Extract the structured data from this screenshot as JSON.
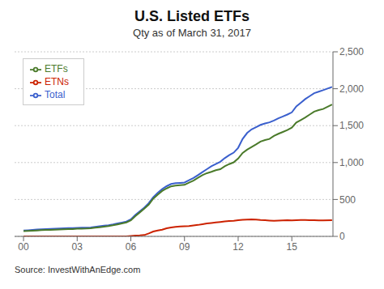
{
  "chart_data": {
    "type": "line",
    "title": "U.S. Listed ETFs",
    "subtitle": "Qty as of March 31, 2017",
    "source": "Source: InvestWithAnEdge.com",
    "x": [
      2000,
      2000.25,
      2000.5,
      2000.75,
      2001,
      2001.25,
      2001.5,
      2001.75,
      2002,
      2002.25,
      2002.5,
      2002.75,
      2003,
      2003.25,
      2003.5,
      2003.75,
      2004,
      2004.25,
      2004.5,
      2004.75,
      2005,
      2005.25,
      2005.5,
      2005.75,
      2006,
      2006.25,
      2006.5,
      2006.75,
      2007,
      2007.25,
      2007.5,
      2007.75,
      2008,
      2008.25,
      2008.5,
      2008.75,
      2009,
      2009.25,
      2009.5,
      2009.75,
      2010,
      2010.25,
      2010.5,
      2010.75,
      2011,
      2011.25,
      2011.5,
      2011.75,
      2012,
      2012.25,
      2012.5,
      2012.75,
      2013,
      2013.25,
      2013.5,
      2013.75,
      2014,
      2014.25,
      2014.5,
      2014.75,
      2015,
      2015.25,
      2015.5,
      2015.75,
      2016,
      2016.25,
      2016.5,
      2016.75,
      2017.25
    ],
    "series": [
      {
        "name": "Total",
        "color": "#3a5fcd",
        "values": [
          80,
          83,
          87,
          92,
          96,
          99,
          102,
          105,
          108,
          110,
          112,
          113,
          116,
          118,
          119,
          122,
          130,
          138,
          145,
          151,
          162,
          175,
          188,
          201,
          230,
          290,
          340,
          390,
          450,
          530,
          590,
          640,
          680,
          710,
          720,
          725,
          730,
          760,
          790,
          830,
          870,
          910,
          950,
          980,
          1010,
          1060,
          1100,
          1134,
          1200,
          1320,
          1400,
          1450,
          1480,
          1510,
          1530,
          1545,
          1570,
          1600,
          1625,
          1650,
          1680,
          1760,
          1810,
          1860,
          1900,
          1940,
          1960,
          1980,
          2024
        ]
      },
      {
        "name": "ETFs",
        "color": "#4a7a2a",
        "values": [
          70,
          73,
          77,
          80,
          84,
          87,
          89,
          91,
          94,
          97,
          99,
          100,
          103,
          105,
          106,
          109,
          117,
          124,
          132,
          140,
          150,
          162,
          175,
          189,
          218,
          275,
          325,
          375,
          430,
          510,
          565,
          615,
          650,
          678,
          688,
          693,
          698,
          728,
          756,
          793,
          830,
          856,
          875,
          897,
          910,
          950,
          979,
          1003,
          1055,
          1130,
          1175,
          1210,
          1245,
          1285,
          1305,
          1320,
          1360,
          1390,
          1415,
          1440,
          1472,
          1543,
          1576,
          1610,
          1650,
          1690,
          1710,
          1725,
          1786
        ]
      },
      {
        "name": "ETNs",
        "color": "#cc2200",
        "values": [
          0,
          0,
          0,
          0,
          0,
          0,
          0,
          0,
          0,
          0,
          0,
          0,
          0,
          0,
          0,
          0,
          0,
          0,
          0,
          0,
          0,
          0,
          0,
          0,
          5,
          10,
          13,
          18,
          40,
          65,
          80,
          90,
          110,
          120,
          128,
          133,
          136,
          140,
          148,
          155,
          165,
          175,
          182,
          188,
          195,
          203,
          208,
          212,
          218,
          224,
          228,
          230,
          228,
          222,
          218,
          215,
          212,
          214,
          216,
          218,
          216,
          220,
          221,
          222,
          218,
          218,
          217,
          216,
          220
        ]
      }
    ],
    "xlim": [
      1999.5,
      2017.3
    ],
    "xticks": [
      {
        "value": 2000,
        "label": "00"
      },
      {
        "value": 2003,
        "label": "03"
      },
      {
        "value": 2006,
        "label": "06"
      },
      {
        "value": 2009,
        "label": "09"
      },
      {
        "value": 2012,
        "label": "12"
      },
      {
        "value": 2015,
        "label": "15"
      }
    ],
    "ylim": [
      0,
      2500
    ],
    "yticks": [
      0,
      500,
      {
        "value": 1000,
        "label": "1,000"
      },
      {
        "value": 1500,
        "label": "1,500"
      },
      {
        "value": 2000,
        "label": "2,000"
      },
      {
        "value": 2500,
        "label": "2,500"
      }
    ],
    "grid": true,
    "legend": "upper left"
  }
}
